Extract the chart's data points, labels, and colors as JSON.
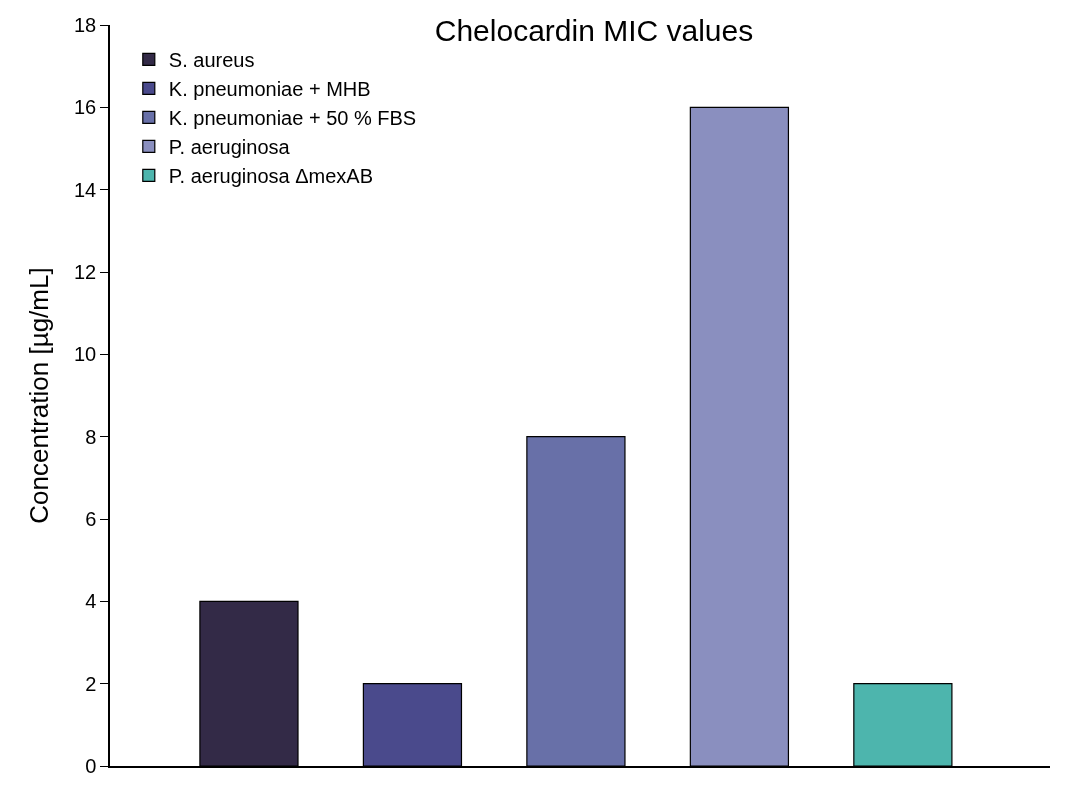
{
  "chart_data": {
    "type": "bar",
    "title": "Chelocardin MIC values",
    "ylabel": "Concentration [µg/mL]",
    "categories": [
      null,
      null,
      null,
      null,
      null
    ],
    "series": [
      {
        "name": "S. aureus",
        "color": "#332a47",
        "values": [
          4,
          null,
          null,
          null,
          null
        ]
      },
      {
        "name": "K. pneumoniae + MHB",
        "color": "#4a4a8c",
        "values": [
          null,
          2,
          null,
          null,
          null
        ]
      },
      {
        "name": "K. pneumoniae + 50 % FBS",
        "color": "#6870a8",
        "values": [
          null,
          null,
          8,
          null,
          null
        ]
      },
      {
        "name": "P. aeruginosa",
        "color": "#8a8fbf",
        "values": [
          null,
          null,
          null,
          16,
          null
        ]
      },
      {
        "name": "P. aeruginosa ΔmexAB",
        "color": "#4db5ad",
        "values": [
          null,
          null,
          null,
          null,
          2
        ]
      }
    ],
    "ylim": [
      0,
      18
    ],
    "yticks": [
      0,
      2,
      4,
      6,
      8,
      10,
      12,
      14,
      16,
      18
    ],
    "grid": false,
    "legend": "top left"
  }
}
